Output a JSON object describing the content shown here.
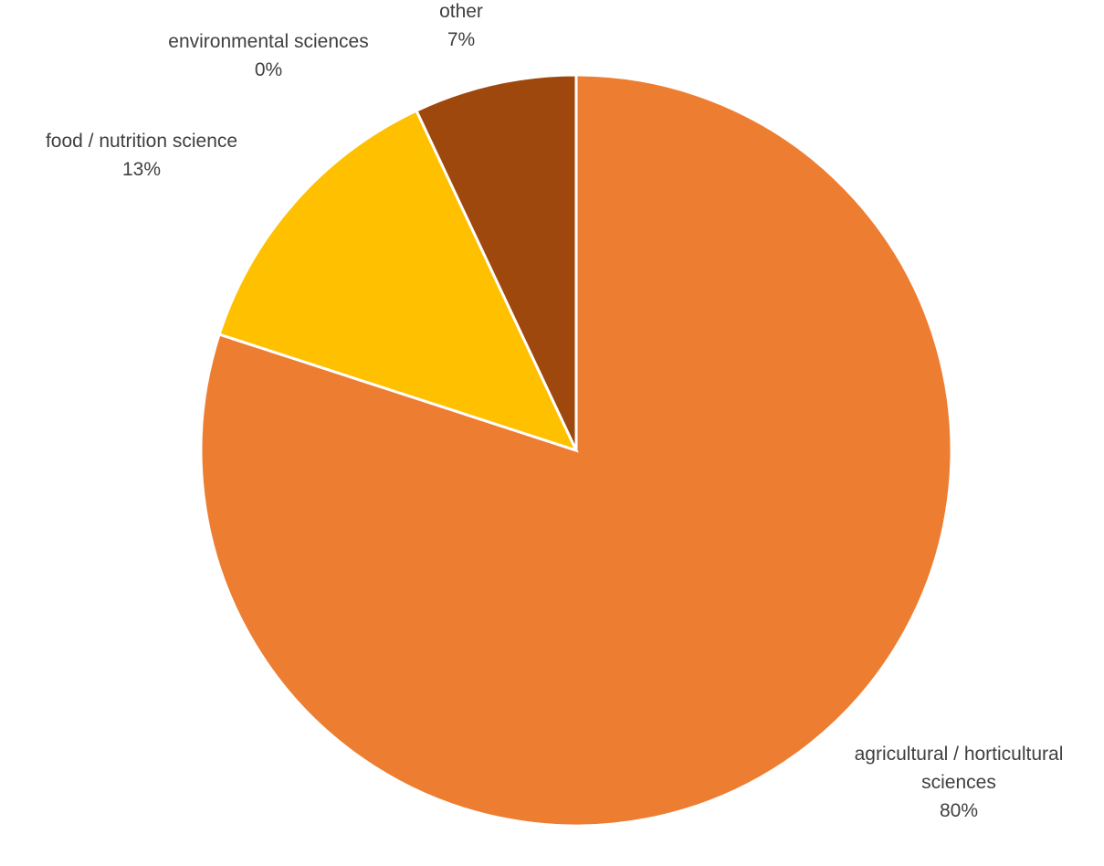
{
  "chart_data": {
    "type": "pie",
    "title": "",
    "start_angle_deg": 0,
    "direction": "clockwise",
    "slices": [
      {
        "label_lines": [
          "agricultural / horticultural",
          "sciences"
        ],
        "value": 80,
        "value_label": "80%",
        "color": "#ED7D31"
      },
      {
        "label_lines": [
          "food / nutrition science"
        ],
        "value": 13,
        "value_label": "13%",
        "color": "#FFC000"
      },
      {
        "label_lines": [
          "environmental sciences"
        ],
        "value": 0,
        "value_label": "0%",
        "color": "#5B9BD5"
      },
      {
        "label_lines": [
          "other"
        ],
        "value": 7,
        "value_label": "7%",
        "color": "#9E480E"
      }
    ],
    "legend": "none"
  }
}
